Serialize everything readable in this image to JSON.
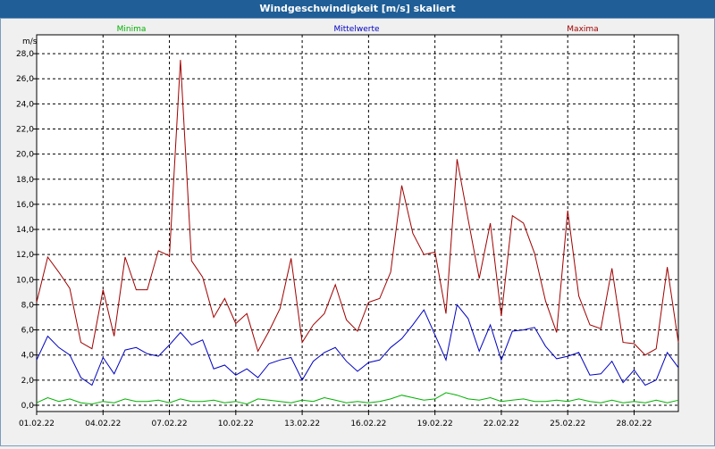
{
  "window": {
    "title": "Windgeschwindigkeit [m/s] skaliert"
  },
  "colors": {
    "min": "#00b000",
    "mean": "#0000c0",
    "max": "#a00000",
    "grid": "#000000"
  },
  "chart_data": {
    "type": "line",
    "title": "Windgeschwindigkeit [m/s] skaliert",
    "ylabel": "m/s",
    "xlabel": "",
    "ylim": [
      -0.5,
      29.5
    ],
    "yticks": [
      0,
      2,
      4,
      6,
      8,
      10,
      12,
      14,
      16,
      18,
      20,
      22,
      24,
      26,
      28
    ],
    "yticklabels": [
      "0,0",
      "2,0",
      "4,0",
      "6,0",
      "8,0",
      "10,0",
      "12,0",
      "14,0",
      "16,0",
      "18,0",
      "20,0",
      "22,0",
      "24,0",
      "26,0",
      "28,0"
    ],
    "xlim": [
      0,
      29
    ],
    "xticks": [
      0,
      3,
      6,
      9,
      12,
      15,
      18,
      21,
      24,
      27
    ],
    "xticklabels": [
      "01.02.22",
      "04.02.22",
      "07.02.22",
      "10.02.22",
      "13.02.22",
      "16.02.22",
      "19.02.22",
      "22.02.22",
      "25.02.22",
      "28.02.22"
    ],
    "grid": true,
    "legend_position": "top",
    "x": [
      0,
      0.5,
      1,
      1.5,
      2,
      2.5,
      3,
      3.5,
      4,
      4.5,
      5,
      5.5,
      6,
      6.5,
      7,
      7.5,
      8,
      8.5,
      9,
      9.5,
      10,
      10.5,
      11,
      11.5,
      12,
      12.5,
      13,
      13.5,
      14,
      14.5,
      15,
      15.5,
      16,
      16.5,
      17,
      17.5,
      18,
      18.5,
      19,
      19.5,
      20,
      20.5,
      21,
      21.5,
      22,
      22.5,
      23,
      23.5,
      24,
      24.5,
      25,
      25.5,
      26,
      26.5,
      27,
      27.5,
      28,
      28.5,
      29
    ],
    "series": [
      {
        "name": "Minima",
        "color": "#00b000",
        "values": [
          0.2,
          0.6,
          0.3,
          0.5,
          0.2,
          0.1,
          0.3,
          0.2,
          0.5,
          0.3,
          0.3,
          0.4,
          0.2,
          0.5,
          0.3,
          0.3,
          0.4,
          0.2,
          0.3,
          0.1,
          0.5,
          0.4,
          0.3,
          0.2,
          0.4,
          0.3,
          0.6,
          0.4,
          0.2,
          0.3,
          0.2,
          0.3,
          0.5,
          0.8,
          0.6,
          0.4,
          0.5,
          1.0,
          0.8,
          0.5,
          0.4,
          0.6,
          0.3,
          0.4,
          0.5,
          0.3,
          0.3,
          0.4,
          0.3,
          0.5,
          0.3,
          0.2,
          0.4,
          0.2,
          0.3,
          0.2,
          0.4,
          0.2,
          0.4
        ]
      },
      {
        "name": "Mittelwerte",
        "color": "#0000c0",
        "values": [
          3.6,
          5.5,
          4.6,
          4.0,
          2.2,
          1.6,
          3.8,
          2.5,
          4.4,
          4.6,
          4.1,
          3.9,
          4.8,
          5.8,
          4.8,
          5.2,
          2.9,
          3.2,
          2.4,
          2.9,
          2.2,
          3.3,
          3.6,
          3.8,
          2.0,
          3.5,
          4.2,
          4.6,
          3.5,
          2.7,
          3.4,
          3.6,
          4.6,
          5.3,
          6.4,
          7.6,
          5.6,
          3.6,
          8.0,
          6.9,
          4.3,
          6.4,
          3.6,
          5.9,
          6.0,
          6.2,
          4.7,
          3.7,
          3.9,
          4.2,
          2.4,
          2.5,
          3.5,
          1.8,
          2.8,
          1.6,
          2.0,
          4.2,
          3.0
        ]
      },
      {
        "name": "Maxima",
        "color": "#a00000",
        "values": [
          8.2,
          11.8,
          10.6,
          9.3,
          5.0,
          4.5,
          9.2,
          5.5,
          11.8,
          9.2,
          9.2,
          12.3,
          11.9,
          27.5,
          11.5,
          10.2,
          7.0,
          8.5,
          6.5,
          7.3,
          4.3,
          5.9,
          7.7,
          11.7,
          5.0,
          6.4,
          7.3,
          9.6,
          6.8,
          5.9,
          8.2,
          8.5,
          10.6,
          17.5,
          13.7,
          12.0,
          12.2,
          7.3,
          19.6,
          14.8,
          10.1,
          14.5,
          7.1,
          15.1,
          14.5,
          12.1,
          8.3,
          5.8,
          15.5,
          8.7,
          6.4,
          6.1,
          10.9,
          5.0,
          4.9,
          4.0,
          4.5,
          11.0,
          5.0
        ]
      }
    ]
  }
}
